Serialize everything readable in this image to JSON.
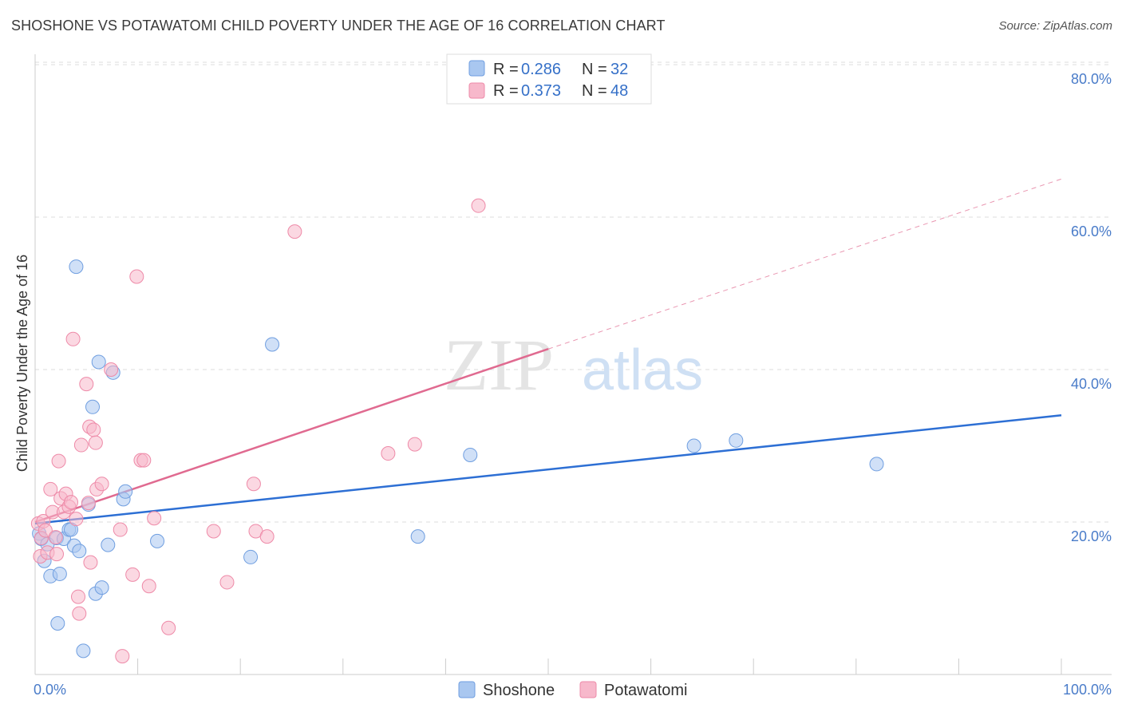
{
  "title": "SHOSHONE VS POTAWATOMI CHILD POVERTY UNDER THE AGE OF 16 CORRELATION CHART",
  "source": "Source: ZipAtlas.com",
  "watermark": {
    "zip": "ZIP",
    "atlas": "atlas"
  },
  "legend": {
    "rows": [
      {
        "r_label": "R =",
        "r_value": "0.286",
        "n_label": "N =",
        "n_value": "32",
        "color": "#a9c7f0"
      },
      {
        "r_label": "R =",
        "r_value": "0.373",
        "n_label": "N =",
        "n_value": "48",
        "color": "#f7b8cb"
      }
    ]
  },
  "bottom_legend": [
    {
      "label": "Shoshone",
      "color": "#a9c7f0"
    },
    {
      "label": "Potawatomi",
      "color": "#f7b8cb"
    }
  ],
  "chart_data": {
    "type": "scatter",
    "title": "SHOSHONE VS POTAWATOMI CHILD POVERTY UNDER THE AGE OF 16 CORRELATION CHART",
    "xlabel": "",
    "ylabel": "Child Poverty Under the Age of 16",
    "xlim": [
      0,
      100
    ],
    "ylim": [
      0,
      80
    ],
    "x_tick_labels": [
      {
        "value": 0,
        "label": "0.0%"
      },
      {
        "value": 100,
        "label": "100.0%"
      }
    ],
    "y_tick_labels": [
      {
        "value": 20,
        "label": "20.0%"
      },
      {
        "value": 40,
        "label": "40.0%"
      },
      {
        "value": 60,
        "label": "60.0%"
      },
      {
        "value": 80,
        "label": "80.0%"
      }
    ],
    "series": [
      {
        "name": "Shoshone",
        "color": "#a9c7f0",
        "stroke": "#6f9ee0",
        "trend_color": "#2d6fd4",
        "trend": {
          "x0": 0,
          "y0": 19.8,
          "x1": 100,
          "y1": 34.0,
          "dashed_to": null
        },
        "points": [
          [
            0.4,
            18.5
          ],
          [
            0.6,
            17.8
          ],
          [
            0.9,
            14.9
          ],
          [
            1.2,
            17.1
          ],
          [
            1.5,
            12.9
          ],
          [
            2.1,
            17.9
          ],
          [
            2.2,
            6.7
          ],
          [
            2.4,
            13.2
          ],
          [
            2.8,
            17.8
          ],
          [
            3.3,
            19.0
          ],
          [
            3.5,
            19.0
          ],
          [
            3.8,
            16.9
          ],
          [
            4.0,
            53.5
          ],
          [
            4.3,
            16.2
          ],
          [
            4.7,
            3.1
          ],
          [
            5.2,
            22.3
          ],
          [
            5.6,
            35.1
          ],
          [
            5.9,
            10.6
          ],
          [
            6.2,
            41.0
          ],
          [
            6.5,
            11.4
          ],
          [
            7.1,
            17.0
          ],
          [
            7.6,
            39.6
          ],
          [
            8.6,
            23.0
          ],
          [
            8.8,
            24.0
          ],
          [
            11.9,
            17.5
          ],
          [
            21.0,
            15.4
          ],
          [
            23.1,
            43.3
          ],
          [
            37.3,
            18.1
          ],
          [
            42.4,
            28.8
          ],
          [
            64.2,
            30.0
          ],
          [
            68.3,
            30.7
          ],
          [
            82.0,
            27.6
          ]
        ]
      },
      {
        "name": "Potawatomi",
        "color": "#f7b8cb",
        "stroke": "#ee8aa8",
        "trend_color": "#e06a90",
        "trend": {
          "x0": 0,
          "y0": 20.0,
          "x1": 50,
          "y1": 42.7,
          "dashed_to": {
            "x": 100,
            "y": 65.0
          }
        },
        "points": [
          [
            0.3,
            19.8
          ],
          [
            0.5,
            15.5
          ],
          [
            0.6,
            17.9
          ],
          [
            0.8,
            20.1
          ],
          [
            1.0,
            18.9
          ],
          [
            1.2,
            16.0
          ],
          [
            1.5,
            24.3
          ],
          [
            1.7,
            21.3
          ],
          [
            2.0,
            18.0
          ],
          [
            2.1,
            15.8
          ],
          [
            2.3,
            28.0
          ],
          [
            2.5,
            23.1
          ],
          [
            2.8,
            21.3
          ],
          [
            3.0,
            23.7
          ],
          [
            3.3,
            22.0
          ],
          [
            3.5,
            22.6
          ],
          [
            3.7,
            44.0
          ],
          [
            4.0,
            20.4
          ],
          [
            4.2,
            10.2
          ],
          [
            4.3,
            8.0
          ],
          [
            4.5,
            30.1
          ],
          [
            5.0,
            38.1
          ],
          [
            5.2,
            22.5
          ],
          [
            5.3,
            32.5
          ],
          [
            5.4,
            14.7
          ],
          [
            5.7,
            32.1
          ],
          [
            5.9,
            30.4
          ],
          [
            6.0,
            24.3
          ],
          [
            6.5,
            25.0
          ],
          [
            7.4,
            40.0
          ],
          [
            8.3,
            19.0
          ],
          [
            8.5,
            2.4
          ],
          [
            9.5,
            13.1
          ],
          [
            9.9,
            52.2
          ],
          [
            10.3,
            28.1
          ],
          [
            10.6,
            28.1
          ],
          [
            11.1,
            11.6
          ],
          [
            11.6,
            20.5
          ],
          [
            13.0,
            6.1
          ],
          [
            17.4,
            18.8
          ],
          [
            18.7,
            12.1
          ],
          [
            21.3,
            25.0
          ],
          [
            21.5,
            18.8
          ],
          [
            22.6,
            18.1
          ],
          [
            25.3,
            58.1
          ],
          [
            34.4,
            29.0
          ],
          [
            37.0,
            30.2
          ],
          [
            43.2,
            61.5
          ]
        ]
      }
    ]
  }
}
